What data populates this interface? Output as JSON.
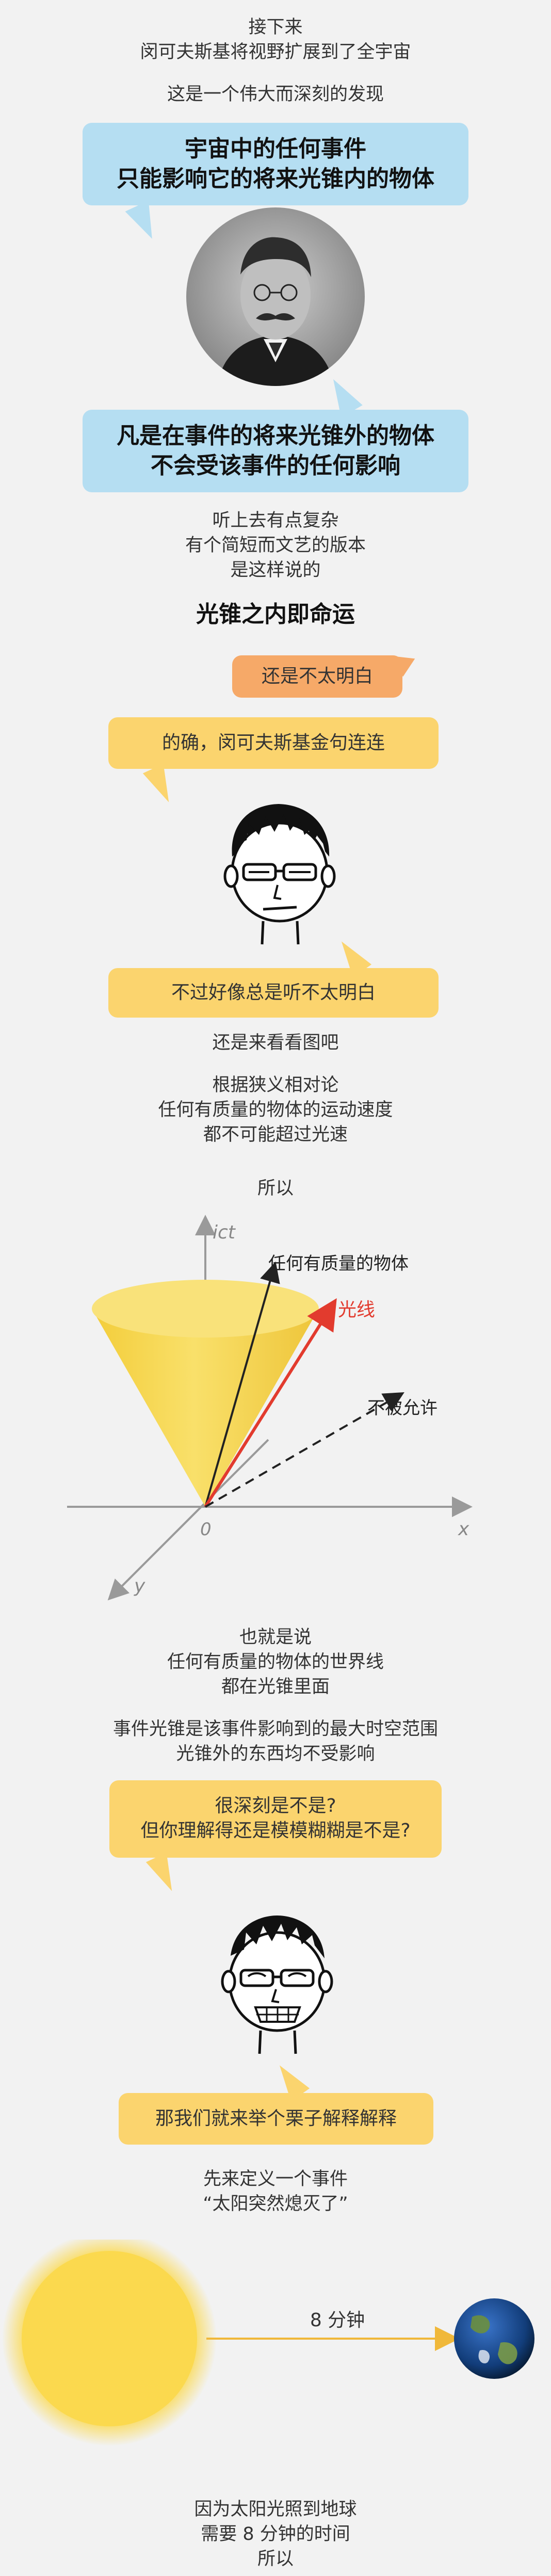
{
  "intro": {
    "line1": "接下来",
    "line2": "闵可夫斯基将视野扩展到了全宇宙",
    "line3": "这是一个伟大而深刻的发现"
  },
  "bubble_top": {
    "line1": "宇宙中的任何事件",
    "line2": "只能影响它的将来光锥内的物体"
  },
  "bubble_bottom": {
    "line1": "凡是在事件的将来光锥外的物体",
    "line2": "不会受该事件的任何影响"
  },
  "sounds_complex": {
    "line1": "听上去有点复杂",
    "line2": "有个简短而文艺的版本",
    "line3": "是这样说的"
  },
  "motto": "光锥之内即命运",
  "not_clear": "还是不太明白",
  "indeed": "的确，闵可夫斯基金句连连",
  "still_not_clear": "不过好像总是听不太明白",
  "look_at_chart": "还是来看看图吧",
  "relativity": {
    "line1": "根据狭义相对论",
    "line2": "任何有质量的物体的运动速度",
    "line3": "都不可能超过光速"
  },
  "therefore": "所以",
  "diagram": {
    "ict_label": "ict",
    "mass_label": "任何有质量的物体",
    "light_label": "光线",
    "forbidden_label": "不被允许",
    "origin_label": "0",
    "x_label": "x",
    "y_label": "y",
    "colors": {
      "cone": "#f7d94c",
      "light": "#e23b2e",
      "axis": "#9a9a9a"
    }
  },
  "that_is": {
    "line1": "也就是说",
    "line2": "任何有质量的物体的世界线",
    "line3": "都在光锥里面"
  },
  "event_cone": {
    "line1": "事件光锥是该事件影响到的最大时空范围",
    "line2": "光锥外的东西均不受影响"
  },
  "deep": {
    "line1": "很深刻是不是?",
    "line2": "但你理解得还是模模糊糊是不是?"
  },
  "example": "那我们就来举个栗子解释解释",
  "define": {
    "line1": "先来定义一个事件",
    "line2": "“太阳突然熄灭了”"
  },
  "sun_earth": {
    "minutes_label": "8 分钟"
  },
  "ending": {
    "line1": "因为太阳光照到地球",
    "line2": "需要 8 分钟的时间",
    "line3": "所以"
  }
}
